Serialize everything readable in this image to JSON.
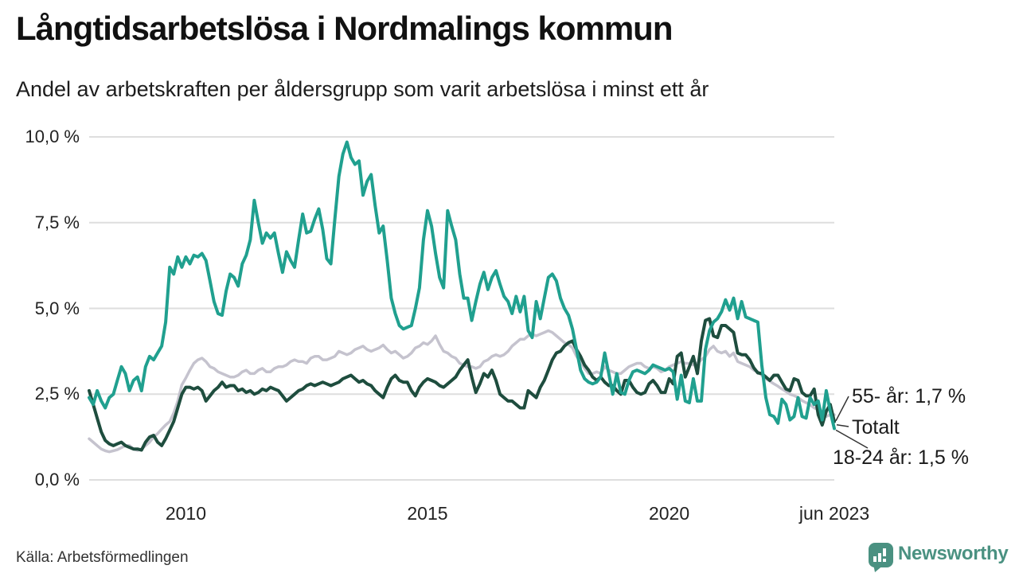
{
  "header": {
    "title": "Långtidsarbetslösa i Nordmalings kommun",
    "subtitle": "Andel av arbetskraften per åldersgrupp som varit arbetslösa i minst ett år"
  },
  "chart_data": {
    "type": "line",
    "x_start": "2008-01",
    "x_end": "2023-06",
    "frequency": "monthly",
    "ylim": [
      0,
      10
    ],
    "grid": "horizontal",
    "gridline_color": "#dedede",
    "y_ticks": [
      {
        "label": "10,0 %",
        "value": 10
      },
      {
        "label": "7,5 %",
        "value": 7.5
      },
      {
        "label": "5,0 %",
        "value": 5
      },
      {
        "label": "2,5 %",
        "value": 2.5
      },
      {
        "label": "0,0 %",
        "value": 0
      }
    ],
    "x_ticks": [
      {
        "label": "2010",
        "month_index": 24
      },
      {
        "label": "2015",
        "month_index": 84
      },
      {
        "label": "2020",
        "month_index": 144
      },
      {
        "label": "jun 2023",
        "month_index": 185
      }
    ],
    "series": [
      {
        "name": "Totalt",
        "color": "#c5c3ce",
        "values": [
          1.2,
          1.1,
          1.0,
          0.9,
          0.85,
          0.82,
          0.85,
          0.88,
          0.94,
          1.0,
          1.0,
          0.9,
          0.86,
          0.9,
          1.0,
          1.1,
          1.25,
          1.35,
          1.48,
          1.6,
          1.7,
          1.95,
          2.3,
          2.77,
          2.97,
          3.2,
          3.4,
          3.5,
          3.55,
          3.45,
          3.3,
          3.25,
          3.15,
          3.1,
          3.05,
          3.0,
          3.0,
          3.05,
          3.15,
          3.2,
          3.1,
          3.1,
          3.2,
          3.25,
          3.15,
          3.15,
          3.25,
          3.3,
          3.3,
          3.35,
          3.45,
          3.5,
          3.45,
          3.45,
          3.4,
          3.55,
          3.6,
          3.6,
          3.5,
          3.5,
          3.55,
          3.6,
          3.75,
          3.7,
          3.65,
          3.7,
          3.8,
          3.85,
          3.9,
          3.8,
          3.75,
          3.8,
          3.85,
          3.93,
          3.8,
          3.7,
          3.75,
          3.65,
          3.55,
          3.6,
          3.7,
          3.85,
          3.9,
          4.0,
          3.95,
          4.05,
          4.2,
          3.95,
          3.75,
          3.7,
          3.6,
          3.55,
          3.4,
          3.35,
          3.3,
          3.3,
          3.25,
          3.3,
          3.45,
          3.5,
          3.6,
          3.65,
          3.6,
          3.65,
          3.75,
          3.9,
          4.0,
          4.1,
          4.1,
          4.2,
          4.25,
          4.2,
          4.25,
          4.3,
          4.35,
          4.3,
          4.2,
          4.1,
          4.0,
          3.95,
          3.85,
          3.6,
          3.45,
          3.25,
          3.1,
          3.1,
          3.15,
          3.1,
          3.3,
          3.2,
          3.15,
          3.1,
          3.1,
          3.2,
          3.3,
          3.35,
          3.4,
          3.4,
          3.3,
          3.25,
          3.3,
          3.25,
          3.15,
          3.2,
          3.3,
          3.35,
          3.4,
          3.45,
          3.4,
          3.4,
          3.35,
          3.4,
          3.5,
          3.6,
          3.8,
          3.9,
          3.75,
          3.7,
          3.75,
          3.6,
          3.7,
          3.45,
          3.4,
          3.35,
          3.3,
          3.2,
          3.15,
          3.05,
          2.95,
          2.88,
          2.8,
          2.73,
          2.65,
          2.58,
          2.5,
          2.46,
          2.4,
          2.31,
          2.25,
          2.19,
          2.1,
          2.05,
          2.0,
          1.85,
          1.9,
          1.9
        ]
      },
      {
        "name": "55- år",
        "color": "#1e4d3e",
        "values": [
          2.6,
          2.2,
          1.8,
          1.4,
          1.15,
          1.05,
          1.0,
          1.05,
          1.1,
          1.0,
          0.95,
          0.9,
          0.9,
          0.87,
          1.1,
          1.25,
          1.3,
          1.1,
          1.0,
          1.2,
          1.45,
          1.7,
          2.1,
          2.5,
          2.7,
          2.7,
          2.65,
          2.7,
          2.6,
          2.3,
          2.45,
          2.6,
          2.7,
          2.85,
          2.7,
          2.75,
          2.75,
          2.6,
          2.65,
          2.55,
          2.6,
          2.5,
          2.55,
          2.65,
          2.6,
          2.7,
          2.65,
          2.6,
          2.45,
          2.3,
          2.4,
          2.5,
          2.6,
          2.65,
          2.75,
          2.8,
          2.75,
          2.8,
          2.85,
          2.8,
          2.75,
          2.8,
          2.85,
          2.95,
          3.0,
          3.05,
          2.95,
          2.85,
          2.9,
          2.8,
          2.75,
          2.6,
          2.5,
          2.4,
          2.7,
          2.95,
          3.05,
          2.9,
          2.85,
          2.85,
          2.6,
          2.45,
          2.7,
          2.85,
          2.95,
          2.9,
          2.85,
          2.75,
          2.7,
          2.8,
          2.9,
          3.0,
          3.2,
          3.35,
          3.5,
          3.0,
          2.55,
          2.8,
          3.1,
          3.0,
          3.2,
          2.9,
          2.5,
          2.4,
          2.3,
          2.3,
          2.2,
          2.1,
          2.1,
          2.6,
          2.5,
          2.4,
          2.7,
          2.9,
          3.2,
          3.5,
          3.7,
          3.75,
          3.9,
          4.0,
          4.05,
          3.8,
          3.6,
          3.35,
          3.2,
          3.0,
          2.9,
          3.0,
          2.85,
          2.75,
          2.75,
          2.6,
          2.5,
          2.9,
          2.9,
          2.7,
          2.55,
          2.5,
          2.55,
          2.8,
          2.9,
          2.75,
          2.55,
          2.55,
          2.95,
          2.8,
          3.6,
          3.7,
          3.0,
          3.3,
          3.6,
          3.1,
          4.05,
          4.65,
          4.7,
          4.2,
          4.15,
          4.5,
          4.5,
          4.4,
          4.3,
          3.7,
          3.65,
          3.65,
          3.5,
          3.27,
          3.12,
          3.1,
          3.0,
          2.9,
          3.05,
          3.05,
          2.85,
          2.65,
          2.6,
          2.95,
          2.9,
          2.55,
          2.45,
          2.45,
          2.65,
          1.9,
          1.6,
          2.0,
          2.2,
          1.7
        ]
      },
      {
        "name": "18-24 år",
        "color": "#20a08f",
        "values": [
          2.4,
          2.2,
          2.6,
          2.3,
          2.1,
          2.4,
          2.5,
          2.9,
          3.3,
          3.1,
          2.6,
          2.9,
          3.0,
          2.6,
          3.3,
          3.6,
          3.5,
          3.7,
          3.9,
          4.6,
          6.2,
          6.0,
          6.5,
          6.2,
          6.5,
          6.3,
          6.55,
          6.5,
          6.6,
          6.4,
          5.8,
          5.2,
          4.85,
          4.8,
          5.5,
          6.0,
          5.9,
          5.65,
          6.3,
          6.55,
          7.0,
          8.15,
          7.5,
          6.9,
          7.2,
          7.05,
          7.2,
          6.6,
          6.05,
          6.65,
          6.4,
          6.2,
          7.0,
          7.75,
          7.2,
          7.25,
          7.6,
          7.9,
          7.3,
          6.45,
          6.3,
          7.6,
          8.85,
          9.5,
          9.85,
          9.4,
          9.2,
          9.3,
          8.3,
          8.7,
          8.9,
          8.0,
          7.2,
          7.4,
          6.4,
          5.3,
          4.85,
          4.5,
          4.4,
          4.45,
          4.5,
          5.0,
          5.6,
          7.0,
          7.85,
          7.4,
          6.6,
          5.9,
          5.6,
          7.85,
          7.4,
          7.0,
          6.0,
          5.3,
          5.3,
          4.65,
          5.2,
          5.7,
          6.05,
          5.55,
          5.9,
          6.1,
          5.7,
          5.35,
          5.2,
          4.85,
          5.35,
          4.9,
          5.35,
          4.35,
          4.15,
          5.2,
          4.7,
          5.3,
          5.9,
          6.0,
          5.8,
          5.3,
          5.0,
          4.8,
          4.4,
          3.8,
          3.2,
          2.95,
          2.85,
          2.8,
          2.85,
          3.0,
          3.7,
          3.1,
          2.5,
          3.1,
          2.55,
          2.5,
          2.9,
          3.15,
          3.2,
          3.15,
          3.1,
          3.2,
          3.35,
          3.3,
          3.25,
          3.2,
          3.25,
          3.15,
          2.35,
          3.05,
          2.3,
          2.25,
          2.95,
          2.3,
          2.3,
          3.8,
          4.35,
          4.6,
          4.7,
          4.9,
          5.25,
          4.95,
          5.3,
          4.7,
          5.2,
          4.75,
          4.7,
          4.65,
          4.6,
          3.35,
          2.4,
          1.9,
          1.85,
          1.65,
          2.35,
          2.2,
          1.75,
          1.85,
          2.4,
          1.85,
          1.8,
          2.4,
          2.2,
          2.3,
          1.75,
          2.6,
          2.0,
          1.5
        ]
      }
    ],
    "end_labels": [
      {
        "text": "55- år: 1,7 %",
        "series": "55- år"
      },
      {
        "text": "Totalt",
        "series": "Totalt"
      },
      {
        "text": "18-24 år: 1,5 %",
        "series": "18-24 år"
      }
    ]
  },
  "footer": {
    "source": "Källa: Arbetsförmedlingen",
    "logo_text": "Newsworthy",
    "logo_color": "#4a9181"
  }
}
